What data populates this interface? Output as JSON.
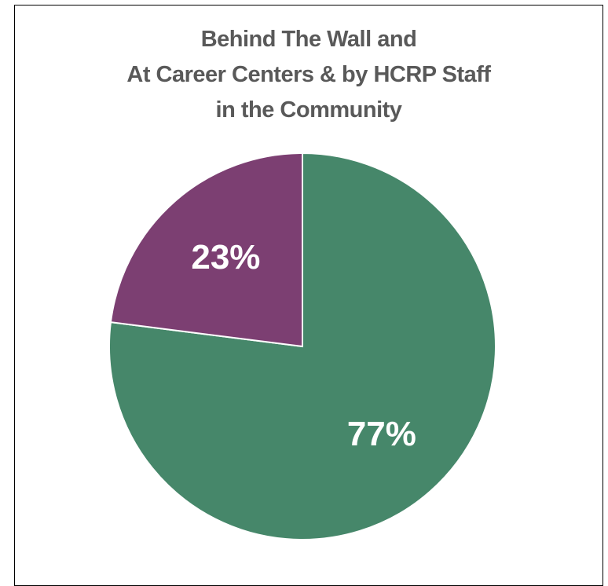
{
  "chart_data": {
    "type": "pie",
    "title_lines": [
      "Behind The Wall and",
      "At Career Centers & by HCRP Staff",
      "in the Community"
    ],
    "slices": [
      {
        "value": 77,
        "label": "77%",
        "color": "#46876a"
      },
      {
        "value": 23,
        "label": "23%",
        "color": "#7c3f72"
      }
    ],
    "start_angle_deg": 0,
    "direction": "clockwise",
    "label_color": "#ffffff",
    "border_color": "#000000"
  }
}
